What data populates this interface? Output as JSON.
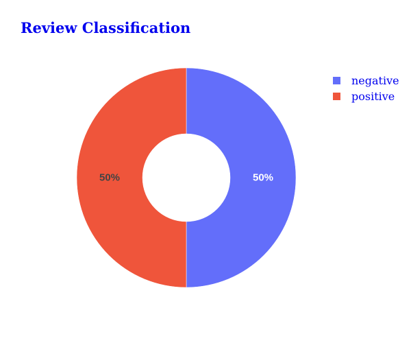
{
  "chart_data": {
    "type": "pie",
    "title": "Review Classification",
    "hole": 0.4,
    "labels": [
      "negative",
      "positive"
    ],
    "values": [
      50,
      50
    ],
    "percent_labels": [
      "50%",
      "50%"
    ],
    "colors": [
      "#636efa",
      "#ef553b"
    ],
    "text_colors": [
      "#ffffff",
      "#444444"
    ],
    "legend_position": "top-right"
  }
}
